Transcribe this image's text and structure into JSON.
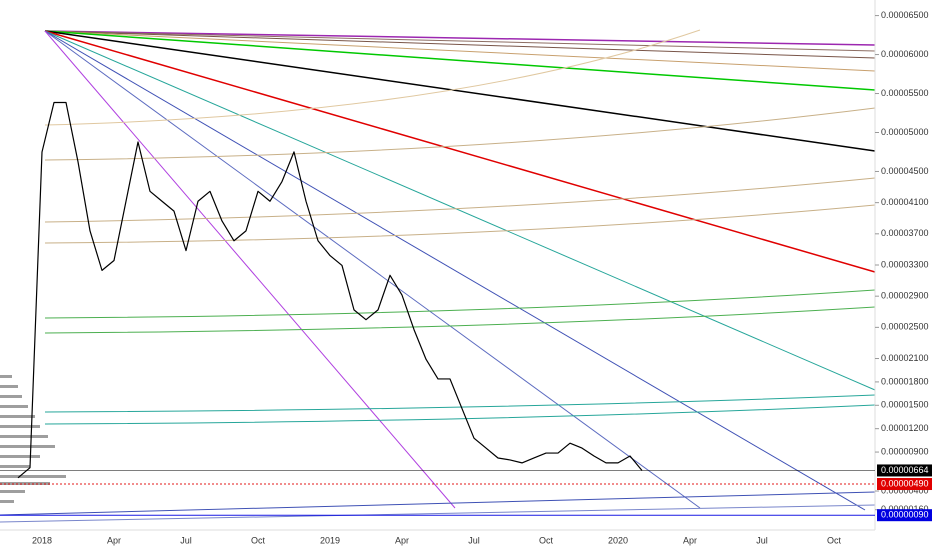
{
  "chart_data": {
    "type": "line",
    "categories": [
      null,
      null,
      "2018",
      null,
      null,
      null,
      null,
      null,
      "Apr",
      null,
      null,
      null,
      null,
      null,
      "Jul",
      null,
      null,
      null,
      null,
      null,
      "Oct",
      null,
      null,
      null,
      null,
      null,
      "2019",
      null,
      null,
      null,
      null,
      null,
      "Apr",
      null,
      null,
      null,
      null,
      null,
      "Jul",
      null,
      null,
      null,
      null,
      null,
      "Oct",
      null,
      null,
      null,
      null,
      null,
      "2020",
      null,
      null,
      null,
      null,
      null,
      "Apr",
      null,
      null,
      null,
      null,
      null,
      "Jul",
      null,
      null,
      null,
      null,
      null,
      "Oct",
      null,
      null,
      null
    ],
    "values": [
      5.7e-06,
      7e-06,
      4.75e-05,
      5.385e-05,
      5.385e-05,
      4.625e-05,
      3.738e-05,
      3.231e-05,
      3.358e-05,
      4.118e-05,
      4.878e-05,
      4.245e-05,
      4.118e-05,
      3.991e-05,
      3.485e-05,
      4.118e-05,
      4.245e-05,
      3.865e-05,
      3.611e-05,
      3.738e-05,
      4.245e-05,
      4.118e-05,
      4.371e-05,
      4.751e-05,
      4.118e-05,
      3.611e-05,
      3.421e-05,
      3.294e-05,
      2.724e-05,
      2.598e-05,
      2.724e-05,
      3.168e-05,
      2.914e-05,
      2.471e-05,
      2.091e-05,
      1.838e-05,
      1.838e-05,
      1.458e-05,
      1.078e-05,
      9.51e-06,
      8.24e-06,
      7.99e-06,
      7.61e-06,
      8.24e-06,
      8.87e-06,
      8.87e-06,
      1.014e-05,
      9.51e-06,
      8.49e-06,
      7.61e-06,
      7.61e-06,
      8.49e-06,
      6.64e-06,
      null,
      null,
      null,
      null,
      null,
      null,
      null,
      null,
      null,
      null,
      null,
      null,
      null,
      null,
      null,
      null,
      null,
      null,
      null
    ],
    "color": "#000000",
    "ylim": [
      -1e-06,
      6.7e-05
    ],
    "yticks": [
      {
        "value": 6.5e-05,
        "label": "0.00006500"
      },
      {
        "value": 6e-05,
        "label": "0.00006000"
      },
      {
        "value": 5.5e-05,
        "label": "0.00005500"
      },
      {
        "value": 5e-05,
        "label": "0.00005000"
      },
      {
        "value": 4.5e-05,
        "label": "0.00004500"
      },
      {
        "value": 4.1e-05,
        "label": "0.00004100"
      },
      {
        "value": 3.7e-05,
        "label": "0.00003700"
      },
      {
        "value": 3.3e-05,
        "label": "0.00003300"
      },
      {
        "value": 2.9e-05,
        "label": "0.00002900"
      },
      {
        "value": 2.5e-05,
        "label": "0.00002500"
      },
      {
        "value": 2.1e-05,
        "label": "0.00002100"
      },
      {
        "value": 1.8e-05,
        "label": "0.00001800"
      },
      {
        "value": 1.5e-05,
        "label": "0.00001500"
      },
      {
        "value": 1.2e-05,
        "label": "0.00001200"
      },
      {
        "value": 9e-06,
        "label": "0.00000900"
      },
      {
        "value": 4e-06,
        "label": "0.00000400"
      },
      {
        "value": 1.6e-06,
        "label": "0.00000160"
      }
    ],
    "price_lines": [
      {
        "value": 6.64e-06,
        "label": "0.00000664",
        "color": "#000000"
      },
      {
        "value": 4.9e-06,
        "label": "0.00000490",
        "color": "#e00000"
      },
      {
        "value": 9e-07,
        "label": "0.00000090",
        "color": "#0000e0"
      }
    ]
  }
}
